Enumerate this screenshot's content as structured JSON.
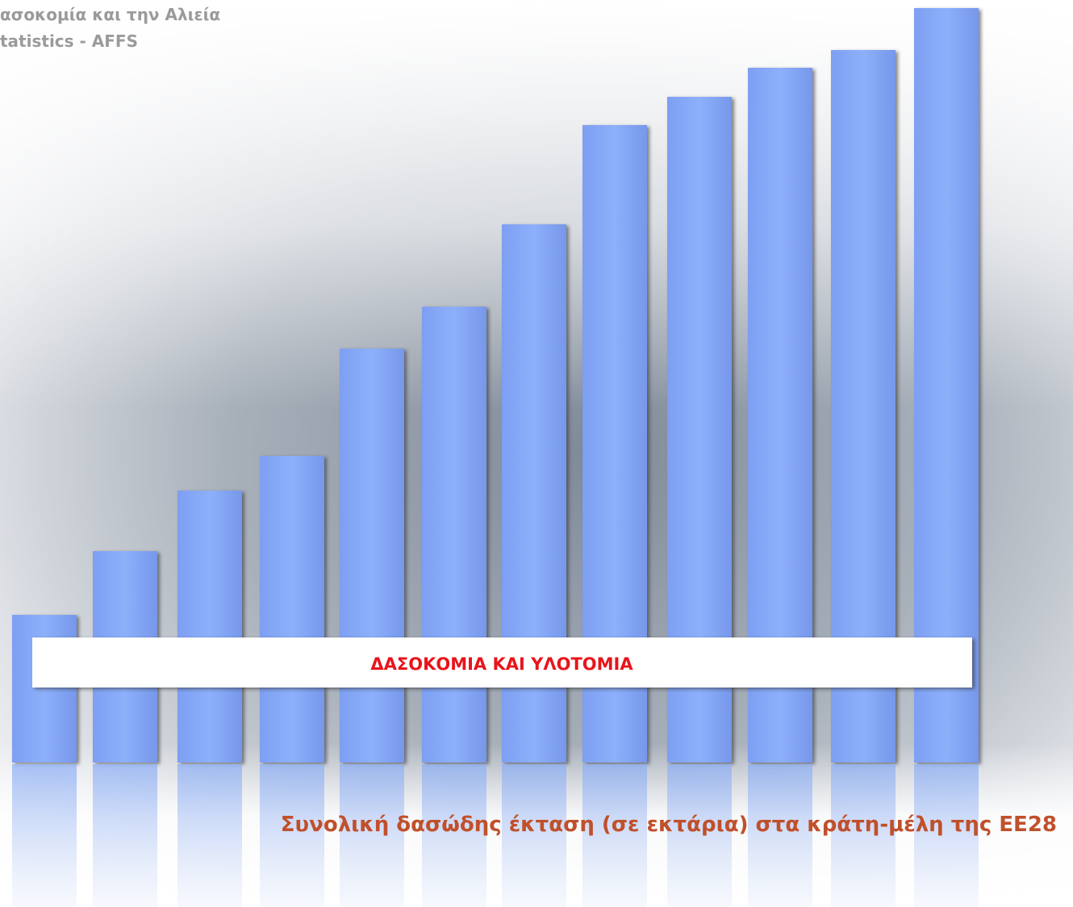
{
  "header": {
    "line1": "ασοκομία και την Αλιεία",
    "line2": "tatistics -  AFFS"
  },
  "banner": {
    "title": "ΔΑΣΟΚΟΜΙΑ ΚΑΙ ΥΛΟΤΟΜΙΑ"
  },
  "subtitle": "Συνολική δασώδης έκταση (σε εκτάρια) στα κράτη-μέλη της ΕΕ28"
}
